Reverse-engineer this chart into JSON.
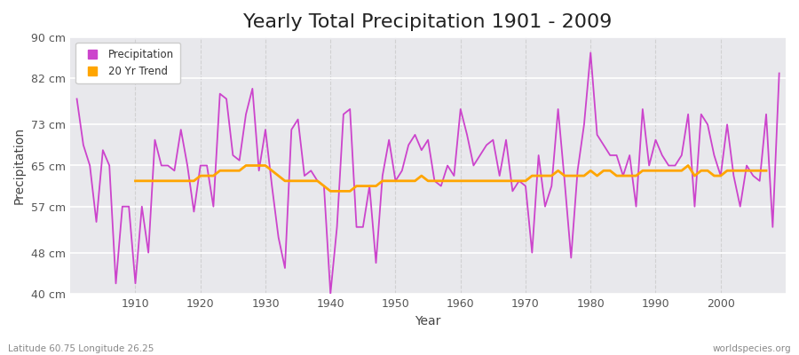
{
  "title": "Yearly Total Precipitation 1901 - 2009",
  "ylabel": "Precipitation",
  "xlabel": "Year",
  "lat_lon_label": "Latitude 60.75 Longitude 26.25",
  "watermark": "worldspecies.org",
  "years": [
    1901,
    1902,
    1903,
    1904,
    1905,
    1906,
    1907,
    1908,
    1909,
    1910,
    1911,
    1912,
    1913,
    1914,
    1915,
    1916,
    1917,
    1918,
    1919,
    1920,
    1921,
    1922,
    1923,
    1924,
    1925,
    1926,
    1927,
    1928,
    1929,
    1930,
    1931,
    1932,
    1933,
    1934,
    1935,
    1936,
    1937,
    1938,
    1939,
    1940,
    1941,
    1942,
    1943,
    1944,
    1945,
    1946,
    1947,
    1948,
    1949,
    1950,
    1951,
    1952,
    1953,
    1954,
    1955,
    1956,
    1957,
    1958,
    1959,
    1960,
    1961,
    1962,
    1963,
    1964,
    1965,
    1966,
    1967,
    1968,
    1969,
    1970,
    1971,
    1972,
    1973,
    1974,
    1975,
    1976,
    1977,
    1978,
    1979,
    1980,
    1981,
    1982,
    1983,
    1984,
    1985,
    1986,
    1987,
    1988,
    1989,
    1990,
    1991,
    1992,
    1993,
    1994,
    1995,
    1996,
    1997,
    1998,
    1999,
    2000,
    2001,
    2002,
    2003,
    2004,
    2005,
    2006,
    2007,
    2008,
    2009
  ],
  "precip": [
    78,
    69,
    65,
    54,
    68,
    65,
    42,
    57,
    57,
    42,
    57,
    48,
    70,
    65,
    65,
    64,
    72,
    65,
    56,
    65,
    65,
    57,
    79,
    78,
    67,
    66,
    75,
    80,
    64,
    72,
    61,
    51,
    45,
    72,
    74,
    63,
    64,
    62,
    61,
    40,
    53,
    75,
    76,
    53,
    53,
    61,
    46,
    63,
    70,
    62,
    64,
    69,
    71,
    68,
    70,
    62,
    61,
    65,
    63,
    76,
    71,
    65,
    67,
    69,
    70,
    63,
    70,
    60,
    62,
    61,
    48,
    67,
    57,
    61,
    76,
    62,
    47,
    64,
    73,
    87,
    71,
    69,
    67,
    67,
    63,
    67,
    57,
    76,
    65,
    70,
    67,
    65,
    65,
    67,
    75,
    57,
    75,
    73,
    67,
    63,
    73,
    63,
    57,
    65,
    63,
    62,
    75,
    53,
    83
  ],
  "trend": [
    null,
    null,
    null,
    null,
    null,
    null,
    null,
    null,
    null,
    62,
    62,
    62,
    62,
    62,
    62,
    62,
    62,
    62,
    62,
    63,
    63,
    63,
    64,
    64,
    64,
    64,
    65,
    65,
    65,
    65,
    64,
    63,
    62,
    62,
    62,
    62,
    62,
    62,
    61,
    60,
    60,
    60,
    60,
    61,
    61,
    61,
    61,
    62,
    62,
    62,
    62,
    62,
    62,
    63,
    62,
    62,
    62,
    62,
    62,
    62,
    62,
    62,
    62,
    62,
    62,
    62,
    62,
    62,
    62,
    62,
    63,
    63,
    63,
    63,
    64,
    63,
    63,
    63,
    63,
    64,
    63,
    64,
    64,
    63,
    63,
    63,
    63,
    64,
    64,
    64,
    64,
    64,
    64,
    64,
    65,
    63,
    64,
    64,
    63,
    63,
    64,
    64,
    64,
    64,
    64,
    64,
    64,
    null,
    null
  ],
  "precip_color": "#CC44CC",
  "trend_color": "#FFA500",
  "fig_bg_color": "#ffffff",
  "plot_bg_color": "#E8E8EC",
  "grid_color_h": "#ffffff",
  "grid_color_v": "#cccccc",
  "ylim": [
    40,
    90
  ],
  "yticks": [
    40,
    48,
    57,
    65,
    73,
    82,
    90
  ],
  "ytick_labels": [
    "40 cm",
    "48 cm",
    "57 cm",
    "65 cm",
    "73 cm",
    "82 cm",
    "90 cm"
  ],
  "xticks": [
    1910,
    1920,
    1930,
    1940,
    1950,
    1960,
    1970,
    1980,
    1990,
    2000
  ],
  "xlim": [
    1900,
    2010
  ],
  "title_fontsize": 16,
  "axis_label_fontsize": 10,
  "tick_fontsize": 9,
  "legend_labels": [
    "Precipitation",
    "20 Yr Trend"
  ]
}
